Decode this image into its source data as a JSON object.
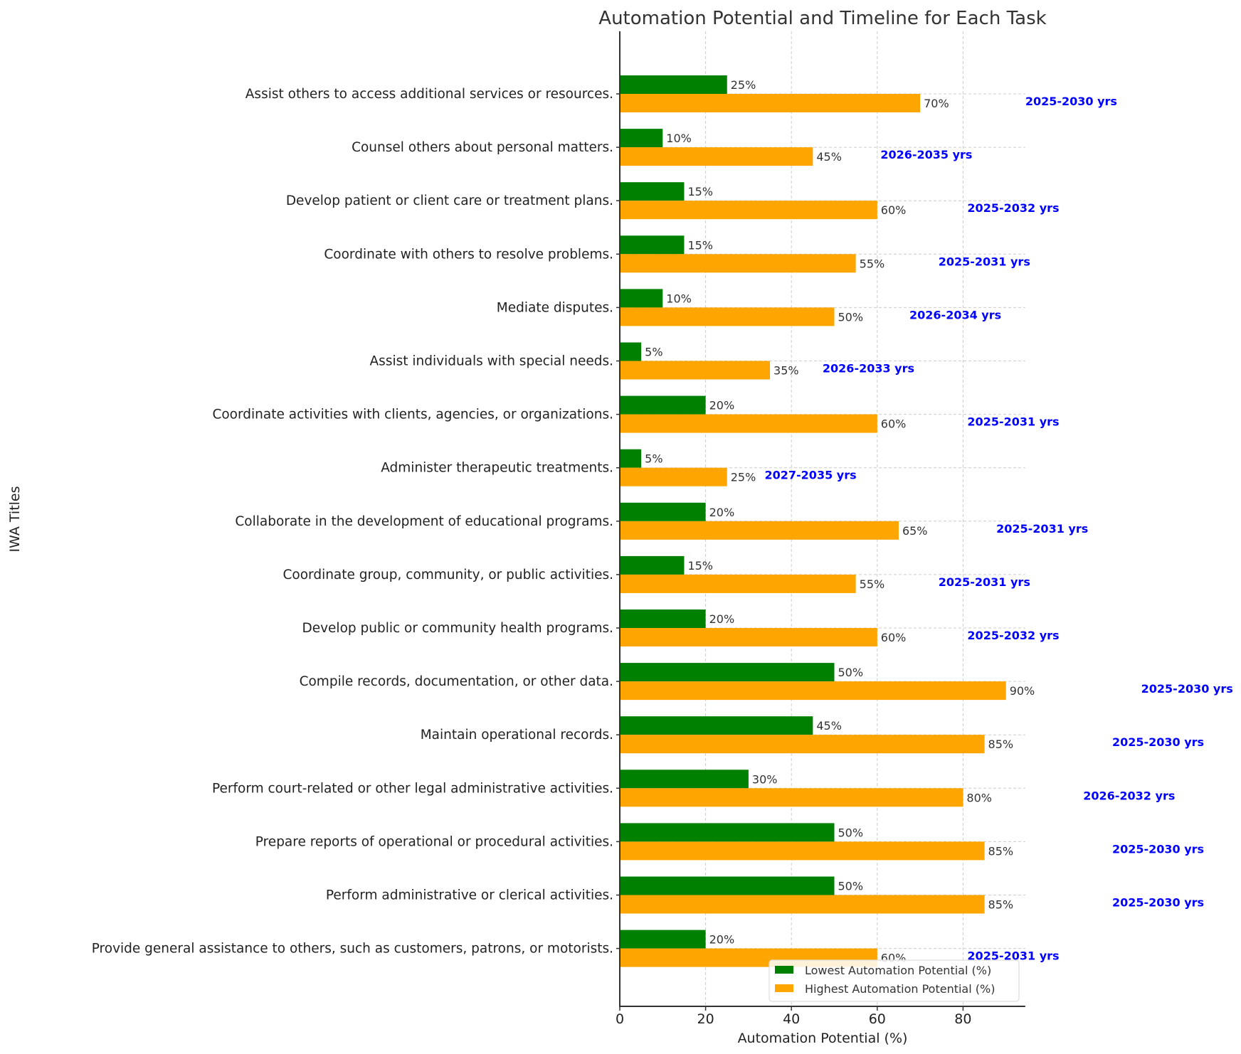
{
  "chart_data": {
    "type": "bar",
    "orientation": "horizontal",
    "title": "Automation Potential and Timeline for Each Task",
    "xlabel": "Automation Potential (%)",
    "ylabel": "IWA Titles",
    "xlim": [
      0,
      94.5
    ],
    "xticks": [
      0,
      20,
      40,
      60,
      80
    ],
    "grid": true,
    "legend_position": "lower-right",
    "categories": [
      "Assist others to access additional services or resources.",
      "Counsel others about personal matters.",
      "Develop patient or client care or treatment plans.",
      "Coordinate with others to resolve problems.",
      "Mediate disputes.",
      "Assist individuals with special needs.",
      "Coordinate activities with clients, agencies, or organizations.",
      "Administer therapeutic treatments.",
      "Collaborate in the development of educational programs.",
      "Coordinate group, community, or public activities.",
      "Develop public or community health programs.",
      "Compile records, documentation, or other data.",
      "Maintain operational records.",
      "Perform court-related or other legal administrative activities.",
      "Prepare reports of operational or procedural activities.",
      "Perform administrative or clerical activities.",
      "Provide general assistance to others, such as customers, patrons, or motorists."
    ],
    "series": [
      {
        "name": "Lowest Automation Potential (%)",
        "color": "#008000",
        "values": [
          25,
          10,
          15,
          15,
          10,
          5,
          20,
          5,
          20,
          15,
          20,
          50,
          45,
          30,
          50,
          50,
          20
        ]
      },
      {
        "name": "Highest Automation Potential (%)",
        "color": "#FFA500",
        "values": [
          70,
          45,
          60,
          55,
          50,
          35,
          60,
          25,
          65,
          55,
          60,
          90,
          85,
          80,
          85,
          85,
          60
        ]
      }
    ],
    "value_label_suffix": "%",
    "timelines": [
      "2025-2030 yrs",
      "2026-2035 yrs",
      "2025-2032 yrs",
      "2025-2031 yrs",
      "2026-2034 yrs",
      "2026-2033 yrs",
      "2025-2031 yrs",
      "2027-2035 yrs",
      "2025-2031 yrs",
      "2025-2031 yrs",
      "2025-2032 yrs",
      "2025-2030 yrs",
      "2025-2030 yrs",
      "2026-2032 yrs",
      "2025-2030 yrs",
      "2025-2030 yrs",
      "2025-2031 yrs"
    ],
    "timeline_color": "#0000FF"
  }
}
